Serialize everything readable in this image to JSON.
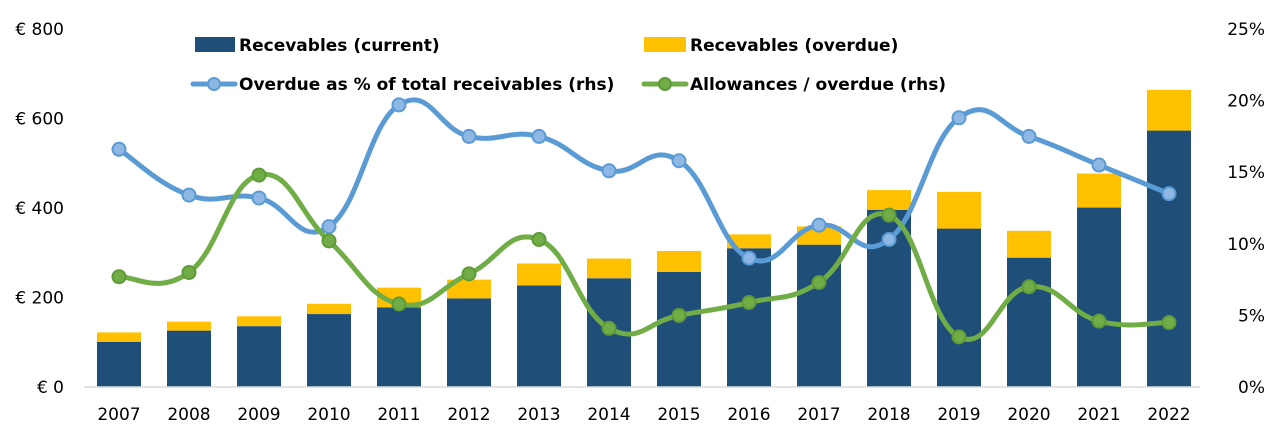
{
  "chart_data": {
    "type": "bar",
    "categories": [
      "2007",
      "2008",
      "2009",
      "2010",
      "2011",
      "2012",
      "2013",
      "2014",
      "2015",
      "2016",
      "2017",
      "2018",
      "2019",
      "2020",
      "2021",
      "2022"
    ],
    "series": [
      {
        "name": "Recevables (current)",
        "type": "bar",
        "stack": "receivables",
        "axis": "left",
        "color": "#1F4E79",
        "values": [
          101,
          126,
          136,
          163,
          178,
          198,
          227,
          243,
          257,
          310,
          318,
          396,
          354,
          289,
          401,
          573
        ]
      },
      {
        "name": "Recevables (overdue)",
        "type": "bar",
        "stack": "receivables",
        "axis": "left",
        "color": "#FFC000",
        "values": [
          21,
          20,
          22,
          23,
          44,
          42,
          49,
          44,
          47,
          31,
          41,
          44,
          82,
          60,
          76,
          91
        ]
      },
      {
        "name": "Overdue as % of total receivables (rhs)",
        "type": "line",
        "axis": "right",
        "color": "#5B9BD5",
        "values": [
          16.6,
          13.4,
          13.2,
          11.2,
          19.7,
          17.5,
          17.5,
          15.1,
          15.8,
          9.0,
          11.3,
          10.3,
          18.8,
          17.5,
          15.5,
          13.5
        ]
      },
      {
        "name": "Allowances / overdue (rhs)",
        "type": "line",
        "axis": "right",
        "color": "#70AD47",
        "values": [
          7.7,
          8.0,
          14.8,
          10.2,
          5.8,
          7.9,
          10.3,
          4.1,
          5.0,
          5.9,
          7.3,
          12.0,
          3.5,
          7.0,
          4.6,
          4.5
        ]
      }
    ],
    "y_left": {
      "min": 0,
      "max": 800,
      "ticks": [
        "€ 0",
        "€ 200",
        "€ 400",
        "€ 600",
        "€ 800"
      ]
    },
    "y_right": {
      "min": 0,
      "max": 25,
      "ticks": [
        "0%",
        "5%",
        "10%",
        "15%",
        "20%",
        "25%"
      ]
    },
    "grid": false,
    "legend_position": "top"
  },
  "legend": {
    "bar_current": "Recevables (current)",
    "bar_overdue": "Recevables (overdue)",
    "line_overdue_pct": "Overdue as % of total receivables (rhs)",
    "line_allowances": "Allowances / overdue (rhs)"
  }
}
